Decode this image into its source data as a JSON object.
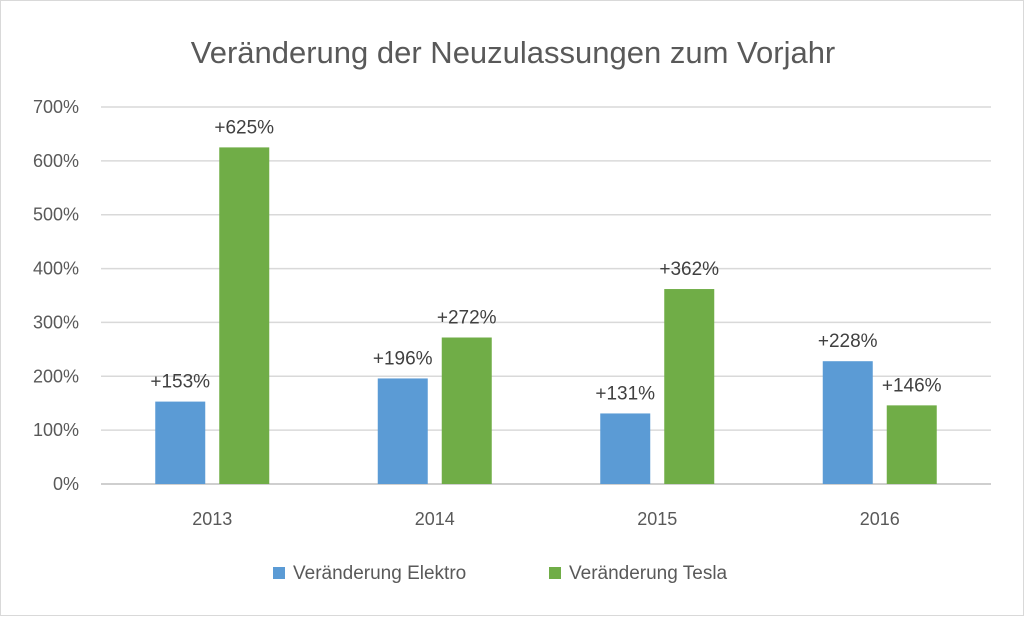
{
  "chart_data": {
    "type": "bar",
    "title": "Veränderung der Neuzulassungen zum Vorjahr",
    "categories": [
      "2013",
      "2014",
      "2015",
      "2016"
    ],
    "series": [
      {
        "name": "Veränderung Elektro",
        "color": "#5B9BD5",
        "values": [
          153,
          196,
          131,
          228
        ],
        "labels": [
          "+153%",
          "+196%",
          "+131%",
          "+228%"
        ]
      },
      {
        "name": "Veränderung Tesla",
        "color": "#70AD47",
        "values": [
          625,
          272,
          362,
          146
        ],
        "labels": [
          "+625%",
          "+272%",
          "+362%",
          "+146%"
        ]
      }
    ],
    "ylim": [
      0,
      700
    ],
    "yticks": [
      "0%",
      "100%",
      "200%",
      "300%",
      "400%",
      "500%",
      "600%",
      "700%"
    ],
    "grid": true,
    "legend": "bottom"
  }
}
